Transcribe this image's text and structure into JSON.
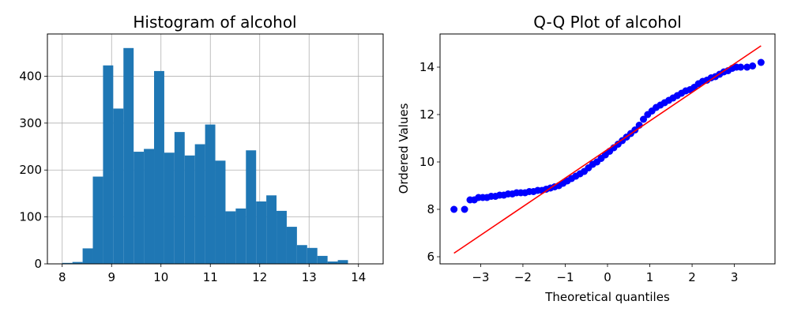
{
  "chart_data": [
    {
      "type": "bar",
      "title": "Histogram of alcohol",
      "xlabel": "",
      "ylabel": "",
      "xlim": [
        7.7,
        14.5
      ],
      "ylim": [
        0,
        490
      ],
      "xticks": [
        "8",
        "9",
        "10",
        "11",
        "12",
        "13",
        "14"
      ],
      "yticks": [
        "0",
        "100",
        "200",
        "300",
        "400"
      ],
      "grid": true,
      "bar_color": "#1f77b4",
      "bin_start": 8.0,
      "bin_width": 0.2067,
      "values": [
        2,
        4,
        33,
        186,
        423,
        331,
        460,
        239,
        245,
        411,
        237,
        281,
        231,
        255,
        297,
        220,
        112,
        118,
        242,
        133,
        146,
        113,
        79,
        40,
        34,
        17,
        5,
        8
      ]
    },
    {
      "type": "scatter",
      "title": "Q-Q Plot of alcohol",
      "xlabel": "Theoretical quantiles",
      "ylabel": "Ordered Values",
      "xlim": [
        -3.96,
        3.96
      ],
      "ylim": [
        5.7,
        15.4
      ],
      "xticks": [
        "−3",
        "−2",
        "−1",
        "0",
        "1",
        "2",
        "3"
      ],
      "yticks": [
        "6",
        "8",
        "10",
        "12",
        "14"
      ],
      "grid": false,
      "marker_color": "#0000ff",
      "line_color": "#ff0000",
      "points": [
        [
          -3.63,
          8.0
        ],
        [
          -3.38,
          8.0
        ],
        [
          -3.25,
          8.4
        ],
        [
          -3.15,
          8.4
        ],
        [
          -3.05,
          8.5
        ],
        [
          -2.95,
          8.5
        ],
        [
          -2.85,
          8.5
        ],
        [
          -2.75,
          8.55
        ],
        [
          -2.65,
          8.55
        ],
        [
          -2.55,
          8.6
        ],
        [
          -2.45,
          8.6
        ],
        [
          -2.35,
          8.65
        ],
        [
          -2.25,
          8.65
        ],
        [
          -2.15,
          8.7
        ],
        [
          -2.05,
          8.7
        ],
        [
          -1.95,
          8.7
        ],
        [
          -1.85,
          8.75
        ],
        [
          -1.75,
          8.75
        ],
        [
          -1.65,
          8.8
        ],
        [
          -1.55,
          8.8
        ],
        [
          -1.45,
          8.85
        ],
        [
          -1.35,
          8.9
        ],
        [
          -1.25,
          8.95
        ],
        [
          -1.15,
          9.0
        ],
        [
          -1.05,
          9.1
        ],
        [
          -0.95,
          9.2
        ],
        [
          -0.85,
          9.3
        ],
        [
          -0.75,
          9.4
        ],
        [
          -0.65,
          9.5
        ],
        [
          -0.55,
          9.6
        ],
        [
          -0.45,
          9.75
        ],
        [
          -0.35,
          9.9
        ],
        [
          -0.25,
          10.0
        ],
        [
          -0.15,
          10.15
        ],
        [
          -0.05,
          10.3
        ],
        [
          0.05,
          10.45
        ],
        [
          0.15,
          10.6
        ],
        [
          0.25,
          10.75
        ],
        [
          0.35,
          10.9
        ],
        [
          0.45,
          11.05
        ],
        [
          0.55,
          11.2
        ],
        [
          0.65,
          11.35
        ],
        [
          0.75,
          11.55
        ],
        [
          0.85,
          11.8
        ],
        [
          0.95,
          12.0
        ],
        [
          1.05,
          12.15
        ],
        [
          1.15,
          12.3
        ],
        [
          1.25,
          12.4
        ],
        [
          1.35,
          12.5
        ],
        [
          1.45,
          12.6
        ],
        [
          1.55,
          12.7
        ],
        [
          1.65,
          12.8
        ],
        [
          1.75,
          12.9
        ],
        [
          1.85,
          13.0
        ],
        [
          1.95,
          13.05
        ],
        [
          2.05,
          13.15
        ],
        [
          2.15,
          13.3
        ],
        [
          2.25,
          13.4
        ],
        [
          2.35,
          13.45
        ],
        [
          2.45,
          13.55
        ],
        [
          2.55,
          13.6
        ],
        [
          2.65,
          13.7
        ],
        [
          2.75,
          13.8
        ],
        [
          2.85,
          13.85
        ],
        [
          2.95,
          13.95
        ],
        [
          3.05,
          14.0
        ],
        [
          3.15,
          14.0
        ],
        [
          3.3,
          14.0
        ],
        [
          3.43,
          14.05
        ],
        [
          3.63,
          14.2
        ]
      ],
      "fit_line": {
        "x": [
          -3.63,
          3.63
        ],
        "y": [
          6.15,
          14.9
        ]
      }
    }
  ]
}
